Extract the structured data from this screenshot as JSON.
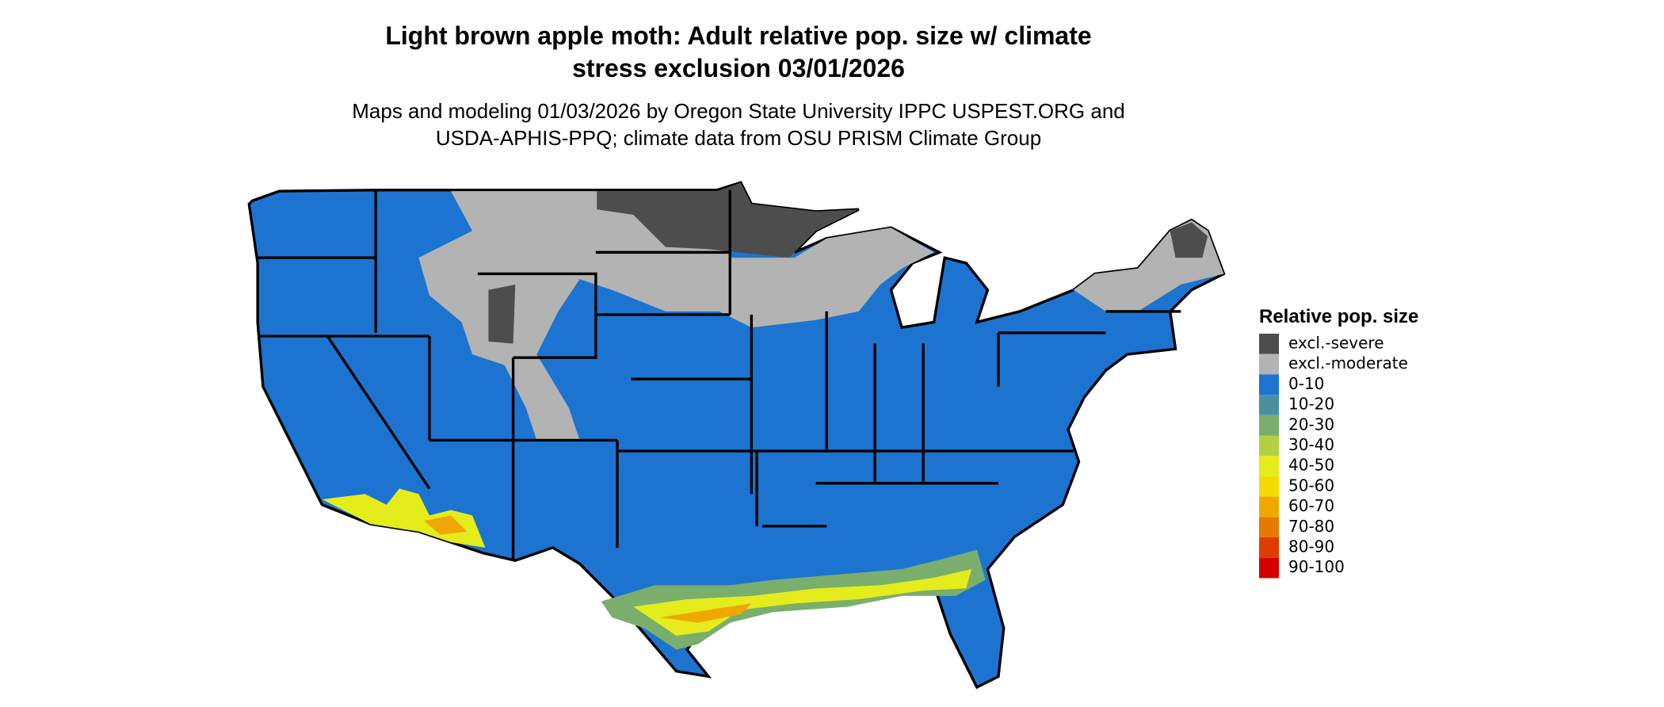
{
  "header": {
    "title": [
      "Light brown apple moth: Adult relative pop. size w/ climate",
      "stress exclusion 03/01/2026"
    ],
    "subtitle": [
      "Maps and modeling 01/03/2026 by Oregon State University IPPC USPEST.ORG and",
      "USDA-APHIS-PPQ; climate data from OSU PRISM Climate Group"
    ]
  },
  "legend": {
    "title": "Relative pop. size",
    "items": [
      {
        "label": "excl.-severe",
        "color": "#4d4d4d"
      },
      {
        "label": "excl.-moderate",
        "color": "#b3b3b3"
      },
      {
        "label": "0-10",
        "color": "#1c74d0"
      },
      {
        "label": "10-20",
        "color": "#4a8fa0"
      },
      {
        "label": "20-30",
        "color": "#7aae6d"
      },
      {
        "label": "30-40",
        "color": "#b2d142"
      },
      {
        "label": "40-50",
        "color": "#e4ec1c"
      },
      {
        "label": "50-60",
        "color": "#f5dc00"
      },
      {
        "label": "60-70",
        "color": "#f0a800"
      },
      {
        "label": "70-80",
        "color": "#e87a00"
      },
      {
        "label": "80-90",
        "color": "#dc3c00"
      },
      {
        "label": "90-100",
        "color": "#d40000"
      }
    ]
  }
}
